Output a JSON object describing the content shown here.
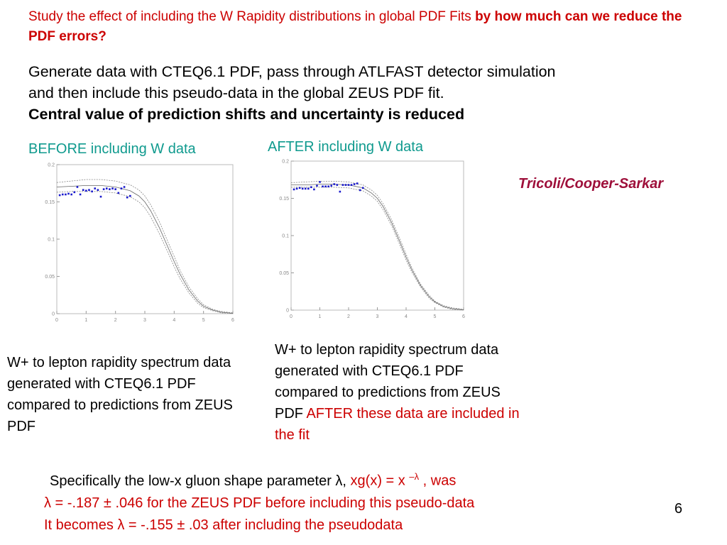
{
  "heading": {
    "plain": "Study the effect of including the W Rapidity distributions in  global  PDF Fits ",
    "bold": "by how much can we reduce the PDF errors?"
  },
  "intro": {
    "line1": "Generate data with CTEQ6.1 PDF,  pass through ATLFAST detector simulation",
    "line2": "and then include this pseudo-data in the global ZEUS PDF fit.",
    "line3": "Central value of prediction shifts and uncertainty is reduced"
  },
  "before_label": "BEFORE including W data",
  "after_label": "AFTER including W data",
  "credit": "Tricoli/Cooper-Sarkar",
  "caption_left": "W+ to lepton rapidity spectrum data generated with CTEQ6.1 PDF compared to predictions from ZEUS PDF",
  "caption_right": {
    "black": "W+ to lepton rapidity spectrum data generated with CTEQ6.1 PDF compared to predictions from ZEUS PDF ",
    "red": "AFTER these data are included in the fit"
  },
  "bottom": {
    "line1_black": "Specifically the low-x gluon shape parameter λ, ",
    "line1_red": "xg(x) = x ",
    "line1_sup": "–λ",
    "line1_end": " , was",
    "line2": "λ = -.187 ± .046 for the ZEUS PDF before including this pseudo-data",
    "line3": "It becomes λ = -.155 ± .03 after including the pseudodata"
  },
  "page_number": "6",
  "colors": {
    "red": "#cc0000",
    "teal": "#0f9a8e",
    "maroon": "#9e0f3a",
    "points": "#1a1acc"
  },
  "chart_data": [
    {
      "type": "scatter",
      "xlim": [
        0,
        6
      ],
      "ylim": [
        0,
        0.2
      ],
      "x_ticks": [
        "0",
        "1",
        "2",
        "3",
        "4",
        "5",
        "6"
      ],
      "y_ticks": [
        "0",
        "0.05",
        "0.1",
        "0.15",
        "0.2"
      ],
      "points_x": [
        0.1,
        0.2,
        0.3,
        0.4,
        0.5,
        0.6,
        0.7,
        0.8,
        0.9,
        1.0,
        1.1,
        1.2,
        1.3,
        1.4,
        1.5,
        1.6,
        1.7,
        1.8,
        1.9,
        2.0,
        2.1,
        2.2,
        2.3,
        2.4,
        2.5
      ],
      "points_y": [
        0.159,
        0.16,
        0.16,
        0.161,
        0.16,
        0.163,
        0.17,
        0.16,
        0.166,
        0.165,
        0.166,
        0.164,
        0.168,
        0.166,
        0.157,
        0.167,
        0.168,
        0.167,
        0.168,
        0.167,
        0.162,
        0.168,
        0.17,
        0.156,
        0.158
      ],
      "curve_x": [
        0,
        0.5,
        1.0,
        1.5,
        2.0,
        2.5,
        2.8,
        3.0,
        3.2,
        3.5,
        3.8,
        4.0,
        4.2,
        4.5,
        4.8,
        5.0,
        5.3,
        5.6,
        6.0
      ],
      "curve_central": [
        0.17,
        0.171,
        0.172,
        0.172,
        0.17,
        0.165,
        0.158,
        0.15,
        0.138,
        0.115,
        0.088,
        0.07,
        0.053,
        0.032,
        0.017,
        0.01,
        0.005,
        0.002,
        0.0005
      ],
      "curve_upper": [
        0.176,
        0.178,
        0.18,
        0.18,
        0.178,
        0.173,
        0.166,
        0.158,
        0.146,
        0.123,
        0.095,
        0.077,
        0.058,
        0.036,
        0.02,
        0.012,
        0.006,
        0.003,
        0.001
      ],
      "curve_lower": [
        0.163,
        0.164,
        0.164,
        0.164,
        0.162,
        0.157,
        0.15,
        0.142,
        0.13,
        0.107,
        0.081,
        0.063,
        0.047,
        0.028,
        0.014,
        0.008,
        0.004,
        0.001,
        0.0003
      ]
    },
    {
      "type": "scatter",
      "xlim": [
        0,
        6
      ],
      "ylim": [
        0,
        0.2
      ],
      "x_ticks": [
        "0",
        "1",
        "2",
        "3",
        "4",
        "5",
        "6"
      ],
      "y_ticks": [
        "0",
        "0.05",
        "0.1",
        "0.15",
        "0.2"
      ],
      "points_x": [
        0.1,
        0.2,
        0.3,
        0.4,
        0.5,
        0.6,
        0.7,
        0.8,
        0.9,
        1.0,
        1.1,
        1.2,
        1.3,
        1.4,
        1.5,
        1.6,
        1.7,
        1.8,
        1.9,
        2.0,
        2.1,
        2.2,
        2.3,
        2.4,
        2.5
      ],
      "points_y": [
        0.162,
        0.163,
        0.164,
        0.163,
        0.163,
        0.163,
        0.165,
        0.162,
        0.167,
        0.172,
        0.166,
        0.166,
        0.166,
        0.167,
        0.169,
        0.168,
        0.159,
        0.168,
        0.168,
        0.168,
        0.168,
        0.169,
        0.17,
        0.161,
        0.164
      ],
      "curve_x": [
        0,
        0.5,
        1.0,
        1.5,
        2.0,
        2.5,
        2.8,
        3.0,
        3.2,
        3.5,
        3.8,
        4.0,
        4.2,
        4.5,
        4.8,
        5.0,
        5.3,
        5.6,
        6.0
      ],
      "curve_central": [
        0.168,
        0.168,
        0.169,
        0.169,
        0.168,
        0.164,
        0.157,
        0.15,
        0.139,
        0.117,
        0.09,
        0.071,
        0.054,
        0.033,
        0.018,
        0.011,
        0.005,
        0.002,
        0.0005
      ],
      "curve_upper": [
        0.171,
        0.172,
        0.173,
        0.173,
        0.172,
        0.168,
        0.161,
        0.154,
        0.143,
        0.121,
        0.094,
        0.075,
        0.057,
        0.035,
        0.02,
        0.012,
        0.006,
        0.003,
        0.001
      ],
      "curve_lower": [
        0.165,
        0.165,
        0.165,
        0.165,
        0.164,
        0.16,
        0.153,
        0.146,
        0.135,
        0.113,
        0.086,
        0.067,
        0.051,
        0.031,
        0.016,
        0.01,
        0.004,
        0.001,
        0.0003
      ]
    }
  ]
}
